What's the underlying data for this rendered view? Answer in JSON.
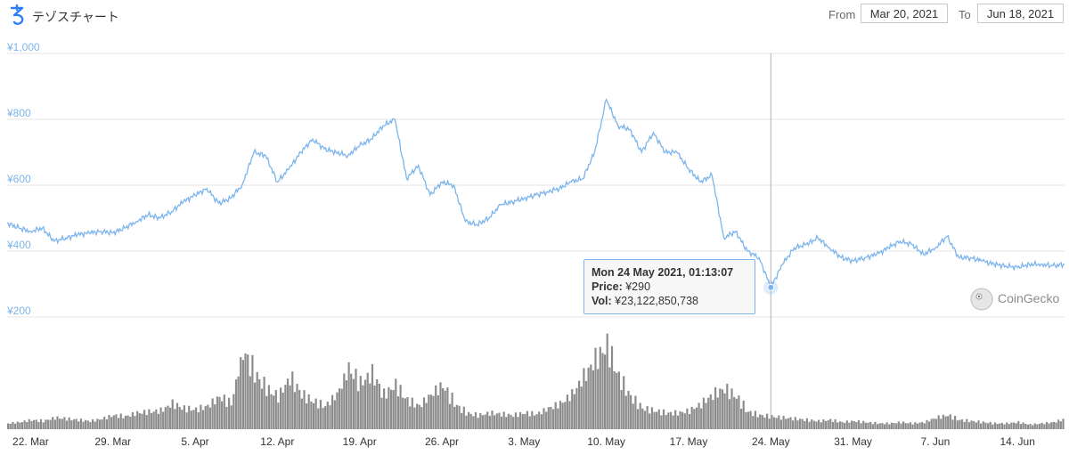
{
  "header": {
    "title": "テゾスチャート",
    "from_label": "From",
    "from_value": "Mar 20, 2021",
    "to_label": "To",
    "to_value": "Jun 18, 2021"
  },
  "tooltip": {
    "date": "Mon 24 May 2021, 01:13:07",
    "price_label": "Price:",
    "price_value": "¥290",
    "vol_label": "Vol:",
    "vol_value": "¥23,122,850,738"
  },
  "watermark": "CoinGecko",
  "colors": {
    "price_line": "#7cb5ec",
    "axis_text": "#7cb5ec",
    "volume": "#8c8c8c",
    "grid": "#e6e6e6"
  },
  "icons": {
    "logo": "tezos-logo-icon",
    "watermark": "coingecko-gecko-icon"
  },
  "chart_data": {
    "type": "line",
    "title": "",
    "ylabel": "",
    "xlabel": "",
    "ylim": [
      200,
      1000
    ],
    "y_ticks": [
      "¥200",
      "¥400",
      "¥600",
      "¥800",
      "¥1,000"
    ],
    "y_tick_values": [
      200,
      400,
      600,
      800,
      1000
    ],
    "grid": true,
    "x_tick_labels": [
      "22. Mar",
      "29. Mar",
      "5. Apr",
      "12. Apr",
      "19. Apr",
      "26. Apr",
      "3. May",
      "10. May",
      "17. May",
      "24. May",
      "31. May",
      "7. Jun",
      "14. Jun"
    ],
    "x_tick_dates": [
      "2021-03-22",
      "2021-03-29",
      "2021-04-05",
      "2021-04-12",
      "2021-04-19",
      "2021-04-26",
      "2021-05-03",
      "2021-05-10",
      "2021-05-17",
      "2021-05-24",
      "2021-05-31",
      "2021-06-07",
      "2021-06-14"
    ],
    "x_range": [
      "2021-03-20",
      "2021-06-18"
    ],
    "series": [
      {
        "values_key": "price",
        "points": [
          [
            "2021-03-20",
            485
          ],
          [
            "2021-03-21",
            470
          ],
          [
            "2021-03-22",
            460
          ],
          [
            "2021-03-23",
            470
          ],
          [
            "2021-03-24",
            430
          ],
          [
            "2021-03-25",
            440
          ],
          [
            "2021-03-26",
            450
          ],
          [
            "2021-03-27",
            455
          ],
          [
            "2021-03-28",
            460
          ],
          [
            "2021-03-29",
            455
          ],
          [
            "2021-03-30",
            470
          ],
          [
            "2021-03-31",
            490
          ],
          [
            "2021-04-01",
            510
          ],
          [
            "2021-04-02",
            500
          ],
          [
            "2021-04-03",
            520
          ],
          [
            "2021-04-04",
            550
          ],
          [
            "2021-04-05",
            570
          ],
          [
            "2021-04-06",
            590
          ],
          [
            "2021-04-07",
            545
          ],
          [
            "2021-04-08",
            560
          ],
          [
            "2021-04-09",
            600
          ],
          [
            "2021-04-10",
            700
          ],
          [
            "2021-04-11",
            690
          ],
          [
            "2021-04-12",
            610
          ],
          [
            "2021-04-13",
            650
          ],
          [
            "2021-04-14",
            700
          ],
          [
            "2021-04-15",
            740
          ],
          [
            "2021-04-16",
            710
          ],
          [
            "2021-04-17",
            700
          ],
          [
            "2021-04-18",
            690
          ],
          [
            "2021-04-19",
            720
          ],
          [
            "2021-04-20",
            740
          ],
          [
            "2021-04-21",
            780
          ],
          [
            "2021-04-22",
            800
          ],
          [
            "2021-04-23",
            620
          ],
          [
            "2021-04-24",
            660
          ],
          [
            "2021-04-25",
            570
          ],
          [
            "2021-04-26",
            610
          ],
          [
            "2021-04-27",
            600
          ],
          [
            "2021-04-28",
            490
          ],
          [
            "2021-04-29",
            480
          ],
          [
            "2021-04-30",
            500
          ],
          [
            "2021-05-01",
            540
          ],
          [
            "2021-05-02",
            550
          ],
          [
            "2021-05-03",
            560
          ],
          [
            "2021-05-04",
            570
          ],
          [
            "2021-05-05",
            580
          ],
          [
            "2021-05-06",
            590
          ],
          [
            "2021-05-07",
            610
          ],
          [
            "2021-05-08",
            620
          ],
          [
            "2021-05-09",
            700
          ],
          [
            "2021-05-10",
            860
          ],
          [
            "2021-05-11",
            780
          ],
          [
            "2021-05-12",
            770
          ],
          [
            "2021-05-13",
            700
          ],
          [
            "2021-05-14",
            760
          ],
          [
            "2021-05-15",
            700
          ],
          [
            "2021-05-16",
            700
          ],
          [
            "2021-05-17",
            650
          ],
          [
            "2021-05-18",
            610
          ],
          [
            "2021-05-19",
            630
          ],
          [
            "2021-05-20",
            440
          ],
          [
            "2021-05-21",
            460
          ],
          [
            "2021-05-22",
            400
          ],
          [
            "2021-05-23",
            380
          ],
          [
            "2021-05-24",
            290
          ],
          [
            "2021-05-25",
            360
          ],
          [
            "2021-05-26",
            410
          ],
          [
            "2021-05-27",
            420
          ],
          [
            "2021-05-28",
            440
          ],
          [
            "2021-05-29",
            410
          ],
          [
            "2021-05-30",
            380
          ],
          [
            "2021-05-31",
            370
          ],
          [
            "2021-06-01",
            380
          ],
          [
            "2021-06-02",
            390
          ],
          [
            "2021-06-03",
            410
          ],
          [
            "2021-06-04",
            430
          ],
          [
            "2021-06-05",
            420
          ],
          [
            "2021-06-06",
            390
          ],
          [
            "2021-06-07",
            410
          ],
          [
            "2021-06-08",
            445
          ],
          [
            "2021-06-09",
            380
          ],
          [
            "2021-06-10",
            380
          ],
          [
            "2021-06-11",
            370
          ],
          [
            "2021-06-12",
            360
          ],
          [
            "2021-06-13",
            355
          ],
          [
            "2021-06-14",
            350
          ],
          [
            "2021-06-15",
            360
          ],
          [
            "2021-06-16",
            360
          ],
          [
            "2021-06-17",
            355
          ],
          [
            "2021-06-18",
            360
          ]
        ]
      },
      {
        "values_key": "volume",
        "points": [
          [
            "2021-03-20",
            5
          ],
          [
            "2021-03-21",
            6
          ],
          [
            "2021-03-22",
            8
          ],
          [
            "2021-03-23",
            7
          ],
          [
            "2021-03-24",
            10
          ],
          [
            "2021-03-25",
            9
          ],
          [
            "2021-03-26",
            8
          ],
          [
            "2021-03-27",
            7
          ],
          [
            "2021-03-28",
            9
          ],
          [
            "2021-03-29",
            12
          ],
          [
            "2021-03-30",
            11
          ],
          [
            "2021-03-31",
            14
          ],
          [
            "2021-04-01",
            15
          ],
          [
            "2021-04-02",
            16
          ],
          [
            "2021-04-03",
            22
          ],
          [
            "2021-04-04",
            18
          ],
          [
            "2021-04-05",
            17
          ],
          [
            "2021-04-06",
            20
          ],
          [
            "2021-04-07",
            28
          ],
          [
            "2021-04-08",
            22
          ],
          [
            "2021-04-09",
            68
          ],
          [
            "2021-04-10",
            48
          ],
          [
            "2021-04-11",
            35
          ],
          [
            "2021-04-12",
            28
          ],
          [
            "2021-04-13",
            45
          ],
          [
            "2021-04-14",
            30
          ],
          [
            "2021-04-15",
            24
          ],
          [
            "2021-04-16",
            20
          ],
          [
            "2021-04-17",
            30
          ],
          [
            "2021-04-18",
            52
          ],
          [
            "2021-04-19",
            40
          ],
          [
            "2021-04-20",
            48
          ],
          [
            "2021-04-21",
            30
          ],
          [
            "2021-04-22",
            38
          ],
          [
            "2021-04-23",
            25
          ],
          [
            "2021-04-24",
            20
          ],
          [
            "2021-04-25",
            30
          ],
          [
            "2021-04-26",
            38
          ],
          [
            "2021-04-27",
            22
          ],
          [
            "2021-04-28",
            14
          ],
          [
            "2021-04-29",
            12
          ],
          [
            "2021-04-30",
            14
          ],
          [
            "2021-05-01",
            13
          ],
          [
            "2021-05-02",
            12
          ],
          [
            "2021-05-03",
            14
          ],
          [
            "2021-05-04",
            13
          ],
          [
            "2021-05-05",
            18
          ],
          [
            "2021-05-06",
            22
          ],
          [
            "2021-05-07",
            30
          ],
          [
            "2021-05-08",
            45
          ],
          [
            "2021-05-09",
            60
          ],
          [
            "2021-05-10",
            72
          ],
          [
            "2021-05-11",
            45
          ],
          [
            "2021-05-12",
            28
          ],
          [
            "2021-05-13",
            18
          ],
          [
            "2021-05-14",
            16
          ],
          [
            "2021-05-15",
            14
          ],
          [
            "2021-05-16",
            14
          ],
          [
            "2021-05-17",
            16
          ],
          [
            "2021-05-18",
            22
          ],
          [
            "2021-05-19",
            30
          ],
          [
            "2021-05-20",
            35
          ],
          [
            "2021-05-21",
            28
          ],
          [
            "2021-05-22",
            15
          ],
          [
            "2021-05-23",
            12
          ],
          [
            "2021-05-24",
            11
          ],
          [
            "2021-05-25",
            10
          ],
          [
            "2021-05-26",
            9
          ],
          [
            "2021-05-27",
            8
          ],
          [
            "2021-05-28",
            7
          ],
          [
            "2021-05-29",
            8
          ],
          [
            "2021-05-30",
            6
          ],
          [
            "2021-05-31",
            7
          ],
          [
            "2021-06-01",
            6
          ],
          [
            "2021-06-02",
            5
          ],
          [
            "2021-06-03",
            5
          ],
          [
            "2021-06-04",
            6
          ],
          [
            "2021-06-05",
            5
          ],
          [
            "2021-06-06",
            6
          ],
          [
            "2021-06-07",
            10
          ],
          [
            "2021-06-08",
            12
          ],
          [
            "2021-06-09",
            8
          ],
          [
            "2021-06-10",
            7
          ],
          [
            "2021-06-11",
            6
          ],
          [
            "2021-06-12",
            5
          ],
          [
            "2021-06-13",
            5
          ],
          [
            "2021-06-14",
            6
          ],
          [
            "2021-06-15",
            4
          ],
          [
            "2021-06-16",
            5
          ],
          [
            "2021-06-17",
            6
          ],
          [
            "2021-06-18",
            9
          ]
        ]
      }
    ],
    "tooltip_point": {
      "date": "2021-05-24",
      "price": 290
    }
  }
}
